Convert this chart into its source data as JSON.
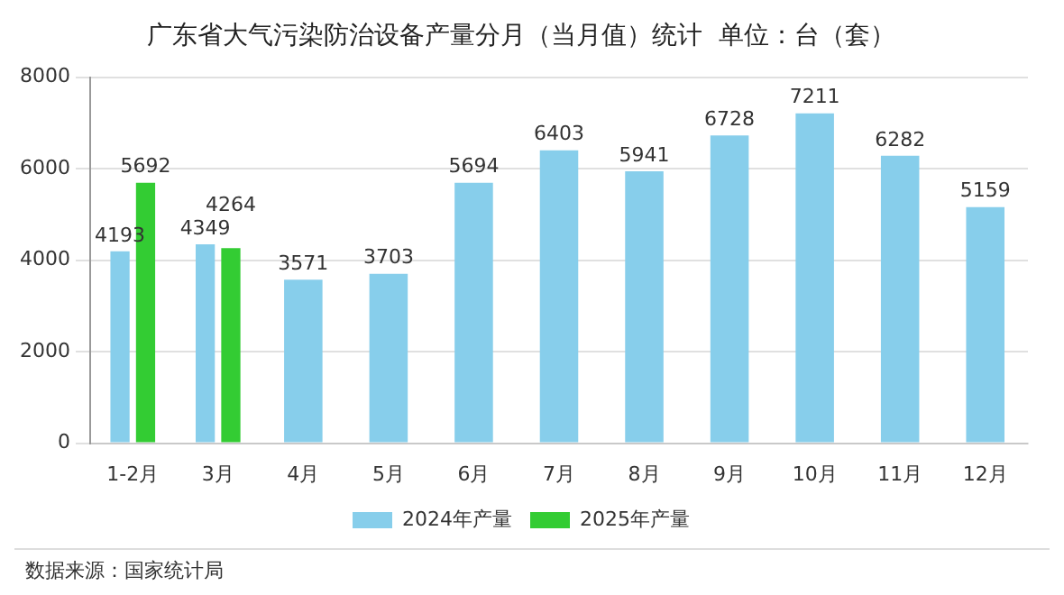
{
  "chart_data": {
    "type": "bar",
    "title": "广东省大气污染防治设备产量分月（当月值）统计  单位：台（套）",
    "categories": [
      "1-2月",
      "3月",
      "4月",
      "5月",
      "6月",
      "7月",
      "8月",
      "9月",
      "10月",
      "11月",
      "12月"
    ],
    "series": [
      {
        "name": "2024年产量",
        "color": "#87ceeb",
        "values": [
          4193,
          4349,
          3571,
          3703,
          5694,
          6403,
          5941,
          6728,
          7211,
          6282,
          5159
        ]
      },
      {
        "name": "2025年产量",
        "color": "#33cc33",
        "values": [
          5692,
          4264,
          null,
          null,
          null,
          null,
          null,
          null,
          null,
          null,
          null
        ]
      }
    ],
    "ylim": [
      0,
      8000
    ],
    "yticks": [
      0,
      2000,
      4000,
      6000,
      8000
    ],
    "grid": "y",
    "legend": "bottom",
    "data_labels": true,
    "annotations": [
      "数据来源：国家统计局"
    ]
  }
}
